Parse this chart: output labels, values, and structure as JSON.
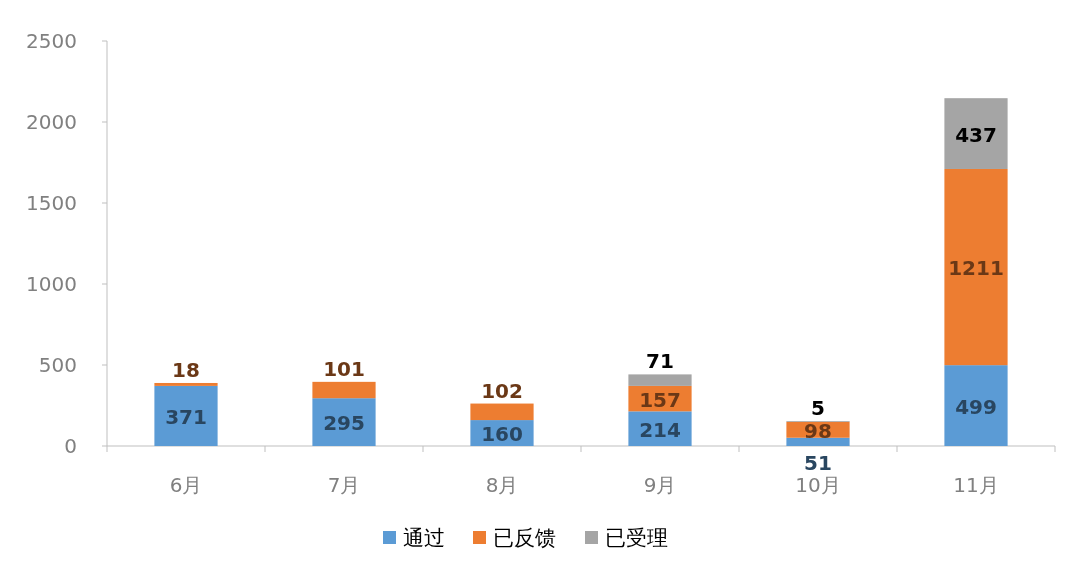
{
  "chart_data": {
    "type": "bar",
    "stacked": true,
    "categories": [
      "6月",
      "7月",
      "8月",
      "9月",
      "10月",
      "11月"
    ],
    "series": [
      {
        "name": "通过",
        "color": "#5b9bd5",
        "values": [
          371,
          295,
          160,
          214,
          51,
          499
        ]
      },
      {
        "name": "已反馈",
        "color": "#ed7d31",
        "values": [
          18,
          101,
          102,
          157,
          98,
          1211
        ]
      },
      {
        "name": "已受理",
        "color": "#a5a5a5",
        "values": [
          null,
          null,
          null,
          71,
          5,
          437
        ]
      }
    ],
    "ylim": [
      0,
      2500
    ],
    "yticks": [
      0,
      500,
      1000,
      1500,
      2000,
      2500
    ],
    "grid": false,
    "legend": "bottom",
    "data_labels": true
  }
}
